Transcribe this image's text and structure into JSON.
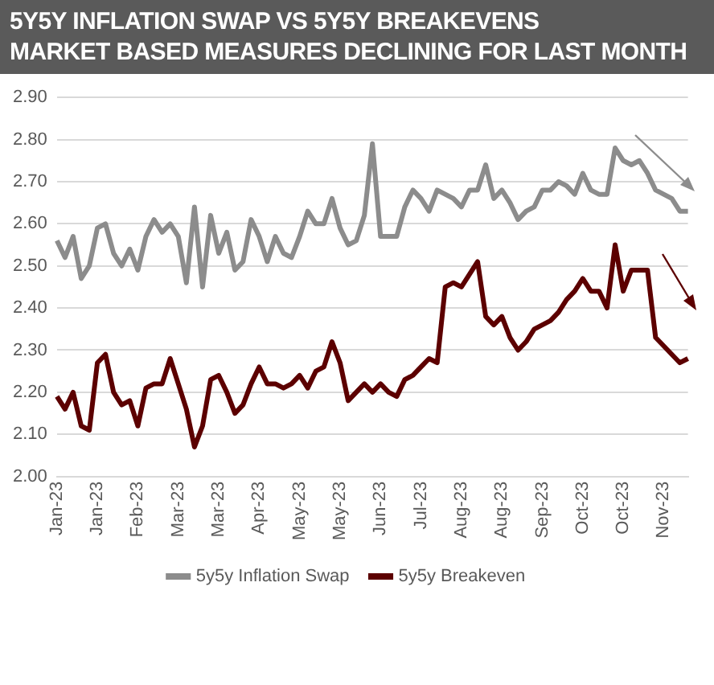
{
  "chart_data": {
    "type": "line",
    "title": "5Y5Y INFLATION SWAP VS 5Y5Y BREAKEVENS",
    "subtitle": "MARKET BASED MEASURES DECLINING FOR LAST MONTH",
    "categories": [
      "Jan-23",
      null,
      null,
      null,
      null,
      "Jan-23",
      null,
      null,
      null,
      null,
      "Feb-23",
      null,
      null,
      null,
      null,
      "Mar-23",
      null,
      null,
      null,
      null,
      "Mar-23",
      null,
      null,
      null,
      null,
      "Apr-23",
      null,
      null,
      null,
      null,
      "May-23",
      null,
      null,
      null,
      null,
      "May-23",
      null,
      null,
      null,
      null,
      "Jun-23",
      null,
      null,
      null,
      null,
      "Jul-23",
      null,
      null,
      null,
      null,
      "Aug-23",
      null,
      null,
      null,
      null,
      "Aug-23",
      null,
      null,
      null,
      null,
      "Sep-23",
      null,
      null,
      null,
      null,
      "Oct-23",
      null,
      null,
      null,
      null,
      "Oct-23",
      null,
      null,
      null,
      null,
      "Nov-23",
      null,
      null,
      null
    ],
    "series": [
      {
        "name": "5y5y Inflation Swap",
        "color": "#8c8c8c",
        "values": [
          2.56,
          2.52,
          2.57,
          2.47,
          2.5,
          2.59,
          2.6,
          2.53,
          2.5,
          2.54,
          2.49,
          2.57,
          2.61,
          2.58,
          2.6,
          2.57,
          2.46,
          2.64,
          2.45,
          2.62,
          2.53,
          2.58,
          2.49,
          2.51,
          2.61,
          2.57,
          2.51,
          2.57,
          2.53,
          2.52,
          2.57,
          2.63,
          2.6,
          2.6,
          2.66,
          2.59,
          2.55,
          2.56,
          2.62,
          2.79,
          2.57,
          2.57,
          2.57,
          2.64,
          2.68,
          2.66,
          2.63,
          2.68,
          2.67,
          2.66,
          2.64,
          2.68,
          2.68,
          2.74,
          2.66,
          2.68,
          2.65,
          2.61,
          2.63,
          2.64,
          2.68,
          2.68,
          2.7,
          2.69,
          2.67,
          2.72,
          2.68,
          2.67,
          2.67,
          2.78,
          2.75,
          2.74,
          2.75,
          2.72,
          2.68,
          2.67,
          2.66,
          2.63,
          2.63
        ]
      },
      {
        "name": "5y5y Breakeven",
        "color": "#5c0000",
        "values": [
          2.19,
          2.16,
          2.2,
          2.12,
          2.11,
          2.27,
          2.29,
          2.2,
          2.17,
          2.18,
          2.12,
          2.21,
          2.22,
          2.22,
          2.28,
          2.22,
          2.16,
          2.07,
          2.12,
          2.23,
          2.24,
          2.2,
          2.15,
          2.17,
          2.22,
          2.26,
          2.22,
          2.22,
          2.21,
          2.22,
          2.24,
          2.21,
          2.25,
          2.26,
          2.32,
          2.27,
          2.18,
          2.2,
          2.22,
          2.2,
          2.22,
          2.2,
          2.19,
          2.23,
          2.24,
          2.26,
          2.28,
          2.27,
          2.45,
          2.46,
          2.45,
          2.48,
          2.51,
          2.38,
          2.36,
          2.38,
          2.33,
          2.3,
          2.32,
          2.35,
          2.36,
          2.37,
          2.39,
          2.42,
          2.44,
          2.47,
          2.44,
          2.44,
          2.4,
          2.55,
          2.44,
          2.49,
          2.49,
          2.49,
          2.33,
          2.31,
          2.29,
          2.27,
          2.28
        ]
      }
    ],
    "ylim": [
      2.0,
      2.9
    ],
    "yticks": [
      {
        "value": 2.0,
        "label": "2.00"
      },
      {
        "value": 2.1,
        "label": "2.10"
      },
      {
        "value": 2.2,
        "label": "2.20"
      },
      {
        "value": 2.3,
        "label": "2.30"
      },
      {
        "value": 2.4,
        "label": "2.40"
      },
      {
        "value": 2.5,
        "label": "2.50"
      },
      {
        "value": 2.6,
        "label": "2.60"
      },
      {
        "value": 2.7,
        "label": "2.70"
      },
      {
        "value": 2.8,
        "label": "2.80"
      },
      {
        "value": 2.9,
        "label": "2.90"
      }
    ],
    "grid": "y",
    "legend": "bottom",
    "marker": "none",
    "line_style": "solid"
  }
}
